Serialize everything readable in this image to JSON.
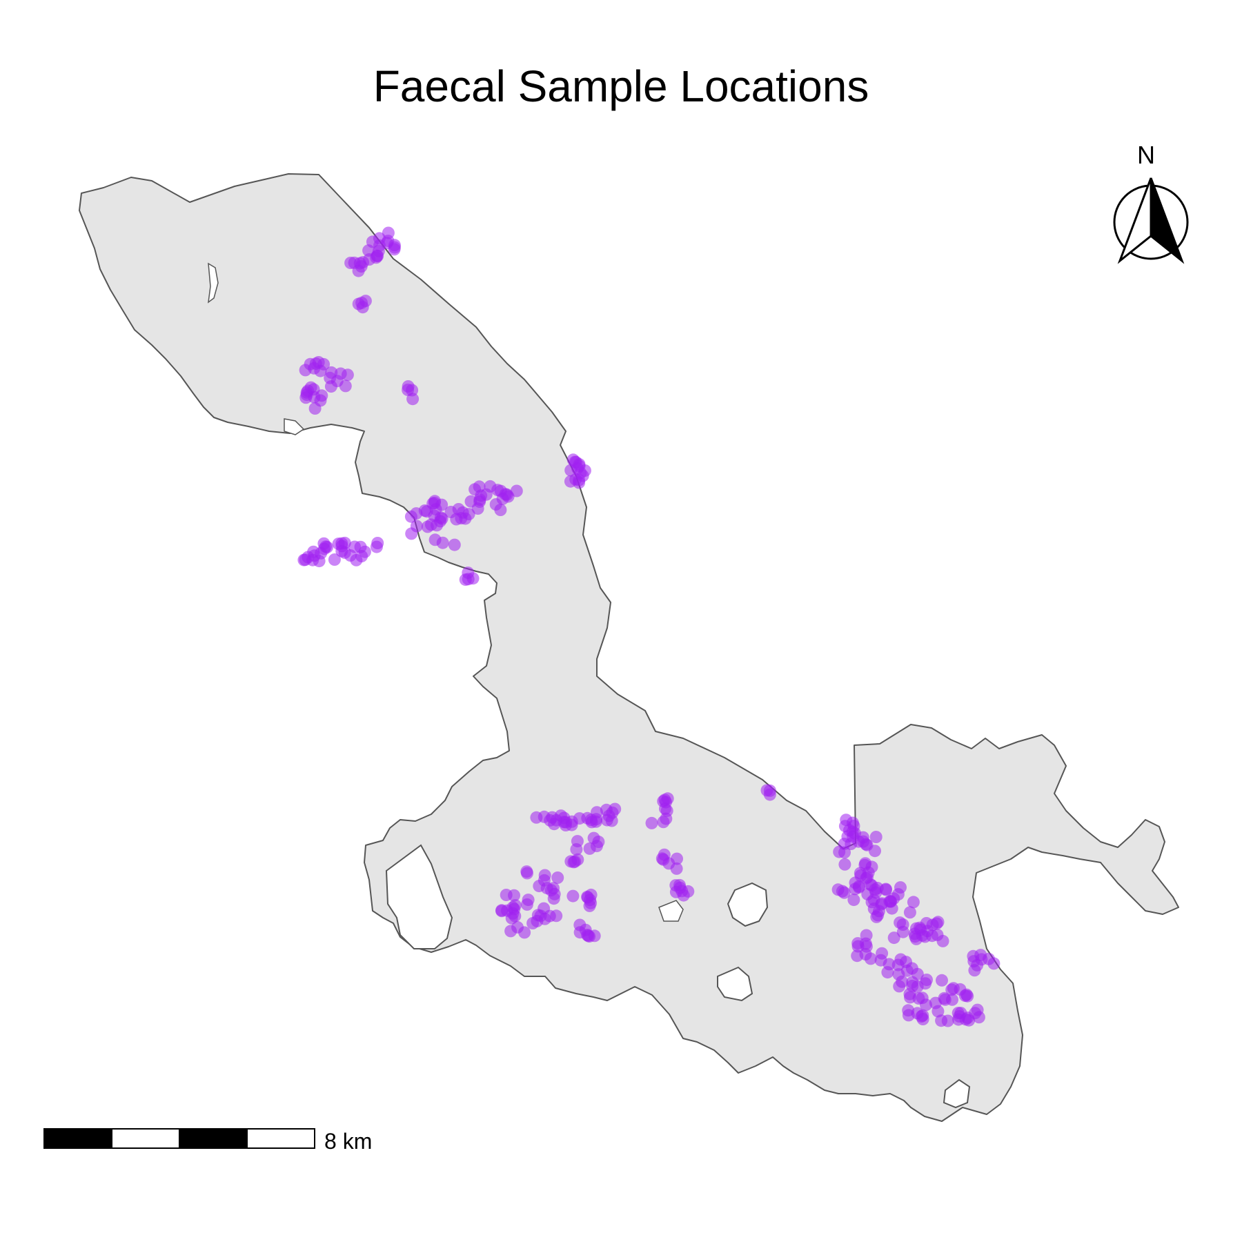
{
  "map": {
    "title": "Faecal Sample Locations",
    "north_arrow": {
      "label": "N",
      "icon": "north-arrow-icon"
    },
    "scale_bar": {
      "label": "8 km",
      "segments": 4,
      "icon": "scale-bar-icon"
    },
    "colors": {
      "land_fill": "#e5e5e5",
      "land_stroke": "#555555",
      "point": "#a020f0"
    },
    "point_opacity": 0.55
  }
}
